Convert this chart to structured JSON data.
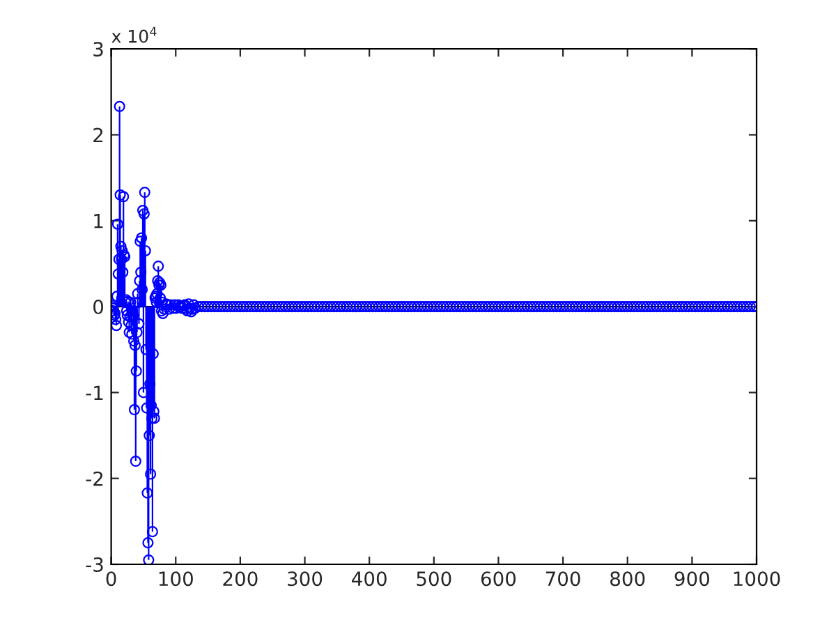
{
  "chart_data": {
    "type": "lollipop",
    "annotations": [
      "x 10$^{4}$"
    ],
    "x": [
      1,
      2,
      3,
      4,
      5,
      6,
      7,
      8,
      9,
      10,
      11,
      12,
      13,
      14,
      15,
      16,
      17,
      18,
      19,
      20,
      21,
      22,
      23,
      24,
      25,
      26,
      27,
      28,
      29,
      30,
      31,
      32,
      33,
      34,
      35,
      36,
      37,
      38,
      39,
      40,
      41,
      42,
      43,
      44,
      45,
      46,
      47,
      48,
      49,
      50,
      51,
      52,
      53,
      54,
      55,
      56,
      57,
      58,
      59,
      60,
      61,
      62,
      63,
      64,
      65,
      66,
      67,
      68,
      69,
      70,
      71,
      72,
      73,
      74,
      75,
      76,
      77,
      78,
      79,
      80,
      81,
      82,
      83,
      84,
      85,
      86,
      88,
      90,
      92,
      94,
      96,
      98,
      100,
      102,
      104,
      106,
      108,
      110,
      112,
      114,
      116,
      118,
      120,
      122,
      124,
      126,
      128,
      130,
      135,
      140,
      145,
      150,
      155,
      160,
      165,
      170,
      175,
      180,
      185,
      190,
      195,
      200,
      205,
      210,
      215,
      220,
      225,
      230,
      235,
      240,
      245,
      250,
      255,
      260,
      265,
      270,
      275,
      280,
      285,
      290,
      295,
      300,
      305,
      310,
      315,
      320,
      325,
      330,
      335,
      340,
      345,
      350,
      355,
      360,
      365,
      370,
      375,
      380,
      385,
      390,
      395,
      400,
      405,
      410,
      415,
      420,
      425,
      430,
      435,
      440,
      445,
      450,
      455,
      460,
      465,
      470,
      475,
      480,
      485,
      490,
      495,
      500,
      505,
      510,
      515,
      520,
      525,
      530,
      535,
      540,
      545,
      550,
      555,
      560,
      565,
      570,
      575,
      580,
      585,
      590,
      595,
      600,
      605,
      610,
      615,
      620,
      625,
      630,
      635,
      640,
      645,
      650,
      655,
      660,
      665,
      670,
      675,
      680,
      685,
      690,
      695,
      700,
      705,
      710,
      715,
      720,
      725,
      730,
      735,
      740,
      745,
      750,
      755,
      760,
      765,
      770,
      775,
      780,
      785,
      790,
      795,
      800,
      805,
      810,
      815,
      820,
      825,
      830,
      835,
      840,
      845,
      850,
      855,
      860,
      865,
      870,
      875,
      880,
      885,
      890,
      895,
      900,
      905,
      910,
      915,
      920,
      925,
      930,
      935,
      940,
      945,
      950,
      955,
      960,
      965,
      970,
      975,
      980,
      985,
      990,
      995,
      1000
    ],
    "values": [
      0,
      0.02,
      -0.02,
      -0.05,
      -0.1,
      -0.08,
      -0.15,
      -0.22,
      0.12,
      0.96,
      0.38,
      0.55,
      2.33,
      1.3,
      0.7,
      0.55,
      0.65,
      0.4,
      1.28,
      0.6,
      0.58,
      0.05,
      0.08,
      -0.05,
      -0.1,
      0.06,
      -0.18,
      -0.3,
      -0.12,
      0.05,
      -0.22,
      -0.32,
      -0.05,
      -0.1,
      -0.4,
      -1.2,
      -0.45,
      -1.8,
      -0.75,
      -0.3,
      0.15,
      0.05,
      -0.2,
      0.3,
      0.76,
      0.4,
      0.8,
      0.2,
      1.12,
      -1.0,
      1.08,
      1.33,
      0.65,
      -0.5,
      -1.18,
      -2.17,
      -2.75,
      -2.95,
      -1.5,
      -0.9,
      -1.95,
      -1.15,
      -1.3,
      -2.62,
      -0.55,
      -1.22,
      -1.3,
      0.1,
      0.12,
      0.05,
      0.15,
      0.3,
      0.47,
      0.25,
      0.28,
      0.1,
      0.25,
      -0.05,
      0.05,
      -0.08,
      null,
      -0.03,
      null,
      null,
      0.03,
      null,
      0.02,
      -0.03,
      0.02,
      null,
      -0.02,
      0.02,
      -0.02,
      null,
      0.02,
      -0.01,
      0.01,
      -0.02,
      0.01,
      0.02,
      -0.03,
      -0.05,
      0.03,
      -0.02,
      -0.06,
      -0.03,
      0.02,
      -0.02,
      0,
      0,
      0,
      0,
      0,
      0,
      0,
      0,
      0,
      0,
      0,
      0,
      0,
      0,
      0,
      0,
      0,
      0,
      0,
      0,
      0,
      0,
      0,
      0,
      0,
      0,
      0,
      0,
      0,
      0,
      0,
      0,
      0,
      0,
      0,
      0,
      0,
      0,
      0,
      0,
      0,
      0,
      0,
      0,
      0,
      0,
      0,
      0,
      0,
      0,
      0,
      0,
      0,
      0,
      0,
      0,
      0,
      0,
      0,
      0,
      0,
      0,
      0,
      0,
      0,
      0,
      0,
      0,
      0,
      0,
      0,
      0,
      0,
      0,
      0,
      0,
      0,
      0,
      0,
      0,
      0,
      0,
      0,
      0,
      0,
      0,
      0,
      0,
      0,
      0,
      0,
      0,
      0,
      0,
      0,
      0,
      0,
      0,
      0,
      0,
      0,
      0,
      0,
      0,
      0,
      0,
      0,
      0,
      0,
      0,
      0,
      0,
      0,
      0,
      0,
      0,
      0,
      0,
      0,
      0,
      0,
      0,
      0,
      0,
      0,
      0,
      0,
      0,
      0,
      0,
      0,
      0,
      0,
      0,
      0,
      0,
      0,
      0,
      0,
      0,
      0,
      0,
      0,
      0,
      0,
      0,
      0,
      0,
      0,
      0,
      0,
      0,
      0,
      0,
      0,
      0,
      0,
      0,
      0,
      0,
      0,
      0,
      0,
      0,
      0,
      0,
      0,
      0,
      0,
      0,
      0,
      0,
      0,
      0
    ],
    "color": "#0000ff",
    "marker": "circle",
    "xlim": [
      0,
      1000
    ],
    "xticks": [
      0,
      100,
      200,
      300,
      400,
      500,
      600,
      700,
      800,
      900,
      1000
    ],
    "ylim": [
      -3,
      3
    ],
    "yticks": [
      -3,
      -2,
      -1,
      0,
      1,
      2,
      3
    ],
    "ref_lines": [
      {
        "axis": "y",
        "value": 0,
        "color": "#000000"
      }
    ],
    "grid": false,
    "legend": false
  }
}
